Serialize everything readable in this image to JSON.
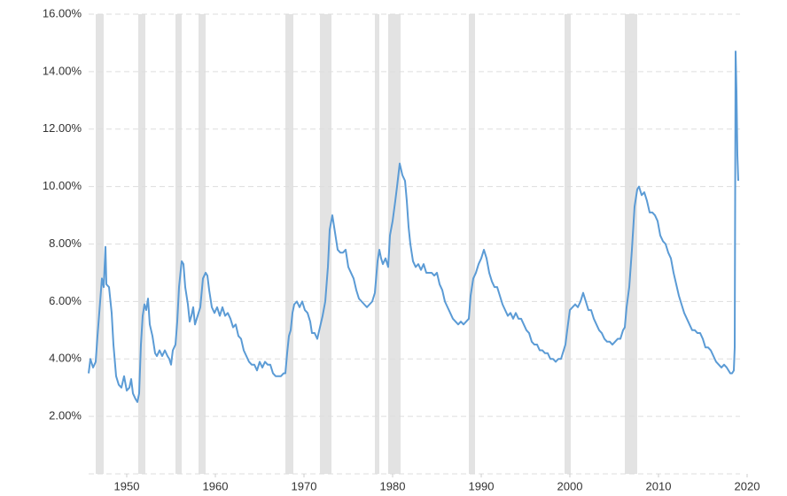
{
  "chart_data": {
    "type": "line",
    "xlim": [
      1945.7,
      2020
    ],
    "xticks": [
      1950,
      1960,
      1970,
      1980,
      1990,
      2000,
      2010,
      2020
    ],
    "ylim": [
      0,
      16
    ],
    "yticks": [
      {
        "value": 2,
        "label": "2.00%"
      },
      {
        "value": 4,
        "label": "4.00%"
      },
      {
        "value": 6,
        "label": "6.00%"
      },
      {
        "value": 8,
        "label": "8.00%"
      },
      {
        "value": 10,
        "label": "10.00%"
      },
      {
        "value": 12,
        "label": "12.00%"
      },
      {
        "value": 14,
        "label": "14.00%"
      },
      {
        "value": 16,
        "label": "16.00%"
      }
    ],
    "grid": true,
    "recession_color": "#e3e3e3",
    "recessions": [
      [
        1946.5,
        1947.4
      ],
      [
        1951.3,
        1952.1
      ],
      [
        1955.5,
        1956.2
      ],
      [
        1958.1,
        1958.9
      ],
      [
        1967.9,
        1968.8
      ],
      [
        1971.8,
        1973.1
      ],
      [
        1978.0,
        1978.5
      ],
      [
        1979.5,
        1980.9
      ],
      [
        1988.6,
        1989.3
      ],
      [
        1999.4,
        2000.1
      ],
      [
        2006.2,
        2007.6
      ]
    ],
    "series": [
      {
        "color": "#5b9bd5",
        "x": [
          1945.7,
          1945.9,
          1946.2,
          1946.5,
          1946.7,
          1947,
          1947.2,
          1947.4,
          1947.6,
          1947.7,
          1948,
          1948.3,
          1948.5,
          1948.8,
          1949.1,
          1949.4,
          1949.7,
          1950,
          1950.3,
          1950.5,
          1950.7,
          1951,
          1951.2,
          1951.4,
          1951.6,
          1951.8,
          1952,
          1952.2,
          1952.4,
          1952.6,
          1952.9,
          1953.2,
          1953.4,
          1953.7,
          1954,
          1954.3,
          1954.6,
          1954.8,
          1955,
          1955.2,
          1955.5,
          1955.7,
          1955.9,
          1956.2,
          1956.4,
          1956.6,
          1956.9,
          1957.1,
          1957.3,
          1957.5,
          1957.7,
          1958,
          1958.3,
          1958.6,
          1958.9,
          1959.1,
          1959.3,
          1959.6,
          1959.9,
          1960.2,
          1960.5,
          1960.8,
          1961.1,
          1961.4,
          1961.7,
          1962,
          1962.3,
          1962.6,
          1962.9,
          1963.2,
          1963.5,
          1963.8,
          1964.1,
          1964.4,
          1964.7,
          1965,
          1965.3,
          1965.6,
          1965.9,
          1966.2,
          1966.5,
          1966.8,
          1967.1,
          1967.4,
          1967.7,
          1967.9,
          1968.1,
          1968.3,
          1968.5,
          1968.7,
          1968.9,
          1969.2,
          1969.5,
          1969.8,
          1970.1,
          1970.4,
          1970.7,
          1970.9,
          1971.2,
          1971.5,
          1971.8,
          1972.1,
          1972.4,
          1972.7,
          1972.9,
          1973.2,
          1973.4,
          1973.6,
          1973.8,
          1974.1,
          1974.4,
          1974.7,
          1975,
          1975.3,
          1975.6,
          1975.9,
          1976.2,
          1976.5,
          1976.8,
          1977.1,
          1977.4,
          1977.7,
          1978,
          1978.3,
          1978.5,
          1978.7,
          1978.9,
          1979.2,
          1979.5,
          1979.7,
          1980,
          1980.3,
          1980.5,
          1980.8,
          1981.1,
          1981.4,
          1981.6,
          1981.8,
          1982,
          1982.3,
          1982.6,
          1982.9,
          1983.2,
          1983.5,
          1983.8,
          1984.1,
          1984.4,
          1984.7,
          1985,
          1985.3,
          1985.6,
          1985.9,
          1986.2,
          1986.5,
          1986.8,
          1987.1,
          1987.4,
          1987.7,
          1988,
          1988.3,
          1988.6,
          1988.8,
          1989.1,
          1989.4,
          1989.7,
          1990,
          1990.3,
          1990.6,
          1990.9,
          1991.2,
          1991.5,
          1991.8,
          1992.1,
          1992.4,
          1992.7,
          1993,
          1993.3,
          1993.6,
          1993.9,
          1994.2,
          1994.5,
          1994.8,
          1995.1,
          1995.4,
          1995.7,
          1996,
          1996.3,
          1996.6,
          1996.9,
          1997.2,
          1997.5,
          1997.8,
          1998.1,
          1998.4,
          1998.7,
          1999,
          1999.3,
          1999.5,
          1999.7,
          2000,
          2000.3,
          2000.6,
          2000.9,
          2001.2,
          2001.5,
          2001.8,
          2002.1,
          2002.4,
          2002.7,
          2003,
          2003.3,
          2003.6,
          2003.9,
          2004.2,
          2004.5,
          2004.8,
          2005.1,
          2005.4,
          2005.7,
          2006,
          2006.2,
          2006.4,
          2006.7,
          2007,
          2007.3,
          2007.6,
          2007.8,
          2008.1,
          2008.4,
          2008.7,
          2009,
          2009.3,
          2009.6,
          2009.9,
          2010.2,
          2010.5,
          2010.8,
          2011.1,
          2011.4,
          2011.7,
          2012,
          2012.3,
          2012.6,
          2012.9,
          2013.2,
          2013.5,
          2013.8,
          2014.1,
          2014.4,
          2014.7,
          2015,
          2015.3,
          2015.6,
          2015.9,
          2016.2,
          2016.5,
          2016.8,
          2017.1,
          2017.4,
          2017.7,
          2017.9,
          2018.1,
          2018.3,
          2018.5,
          2018.6,
          2018.7,
          2018.8,
          2018.9,
          2019
        ],
        "values": [
          3.5,
          4.0,
          3.7,
          3.9,
          4.8,
          6.0,
          6.8,
          6.5,
          7.9,
          6.6,
          6.5,
          5.6,
          4.5,
          3.4,
          3.1,
          3.0,
          3.4,
          2.9,
          3.0,
          3.3,
          2.8,
          2.6,
          2.5,
          2.8,
          4.5,
          5.5,
          5.9,
          5.7,
          6.1,
          5.2,
          4.8,
          4.2,
          4.1,
          4.3,
          4.1,
          4.3,
          4.1,
          4.0,
          3.8,
          4.3,
          4.5,
          5.3,
          6.5,
          7.4,
          7.3,
          6.5,
          5.9,
          5.3,
          5.5,
          5.8,
          5.2,
          5.5,
          5.8,
          6.8,
          7.0,
          6.9,
          6.4,
          5.8,
          5.6,
          5.8,
          5.5,
          5.8,
          5.5,
          5.6,
          5.4,
          5.1,
          5.2,
          4.8,
          4.7,
          4.3,
          4.1,
          3.9,
          3.8,
          3.8,
          3.6,
          3.9,
          3.7,
          3.9,
          3.8,
          3.8,
          3.5,
          3.4,
          3.4,
          3.4,
          3.5,
          3.5,
          4.2,
          4.8,
          5.0,
          5.6,
          5.9,
          6.0,
          5.8,
          6.0,
          5.7,
          5.6,
          5.3,
          4.9,
          4.9,
          4.7,
          5.1,
          5.5,
          6.0,
          7.2,
          8.5,
          9.0,
          8.6,
          8.2,
          7.8,
          7.7,
          7.7,
          7.8,
          7.2,
          7.0,
          6.8,
          6.4,
          6.1,
          6.0,
          5.9,
          5.8,
          5.9,
          6.0,
          6.3,
          7.4,
          7.8,
          7.5,
          7.3,
          7.5,
          7.2,
          8.3,
          8.8,
          9.5,
          10.0,
          10.8,
          10.4,
          10.2,
          9.5,
          8.6,
          8.0,
          7.4,
          7.2,
          7.3,
          7.1,
          7.3,
          7.0,
          7.0,
          7.0,
          6.9,
          7.0,
          6.6,
          6.4,
          6.0,
          5.8,
          5.6,
          5.4,
          5.3,
          5.2,
          5.3,
          5.2,
          5.3,
          5.4,
          6.2,
          6.8,
          7.0,
          7.3,
          7.5,
          7.8,
          7.5,
          7.0,
          6.7,
          6.5,
          6.5,
          6.2,
          5.9,
          5.7,
          5.5,
          5.6,
          5.4,
          5.6,
          5.4,
          5.4,
          5.2,
          5.0,
          4.9,
          4.6,
          4.5,
          4.5,
          4.3,
          4.3,
          4.2,
          4.2,
          4.0,
          4.0,
          3.9,
          4.0,
          4.0,
          4.3,
          4.5,
          5.0,
          5.7,
          5.8,
          5.9,
          5.8,
          6.0,
          6.3,
          6.0,
          5.7,
          5.7,
          5.4,
          5.2,
          5.0,
          4.9,
          4.7,
          4.6,
          4.6,
          4.5,
          4.6,
          4.7,
          4.7,
          5.0,
          5.1,
          5.8,
          6.5,
          7.8,
          9.3,
          9.9,
          10.0,
          9.7,
          9.8,
          9.5,
          9.1,
          9.1,
          9.0,
          8.8,
          8.3,
          8.1,
          8.0,
          7.7,
          7.5,
          7.0,
          6.6,
          6.2,
          5.9,
          5.6,
          5.4,
          5.2,
          5.0,
          5.0,
          4.9,
          4.9,
          4.7,
          4.4,
          4.4,
          4.3,
          4.1,
          3.9,
          3.8,
          3.7,
          3.8,
          3.7,
          3.6,
          3.5,
          3.5,
          3.6,
          4.4,
          14.7,
          13.3,
          11.1,
          10.2
        ]
      }
    ]
  }
}
